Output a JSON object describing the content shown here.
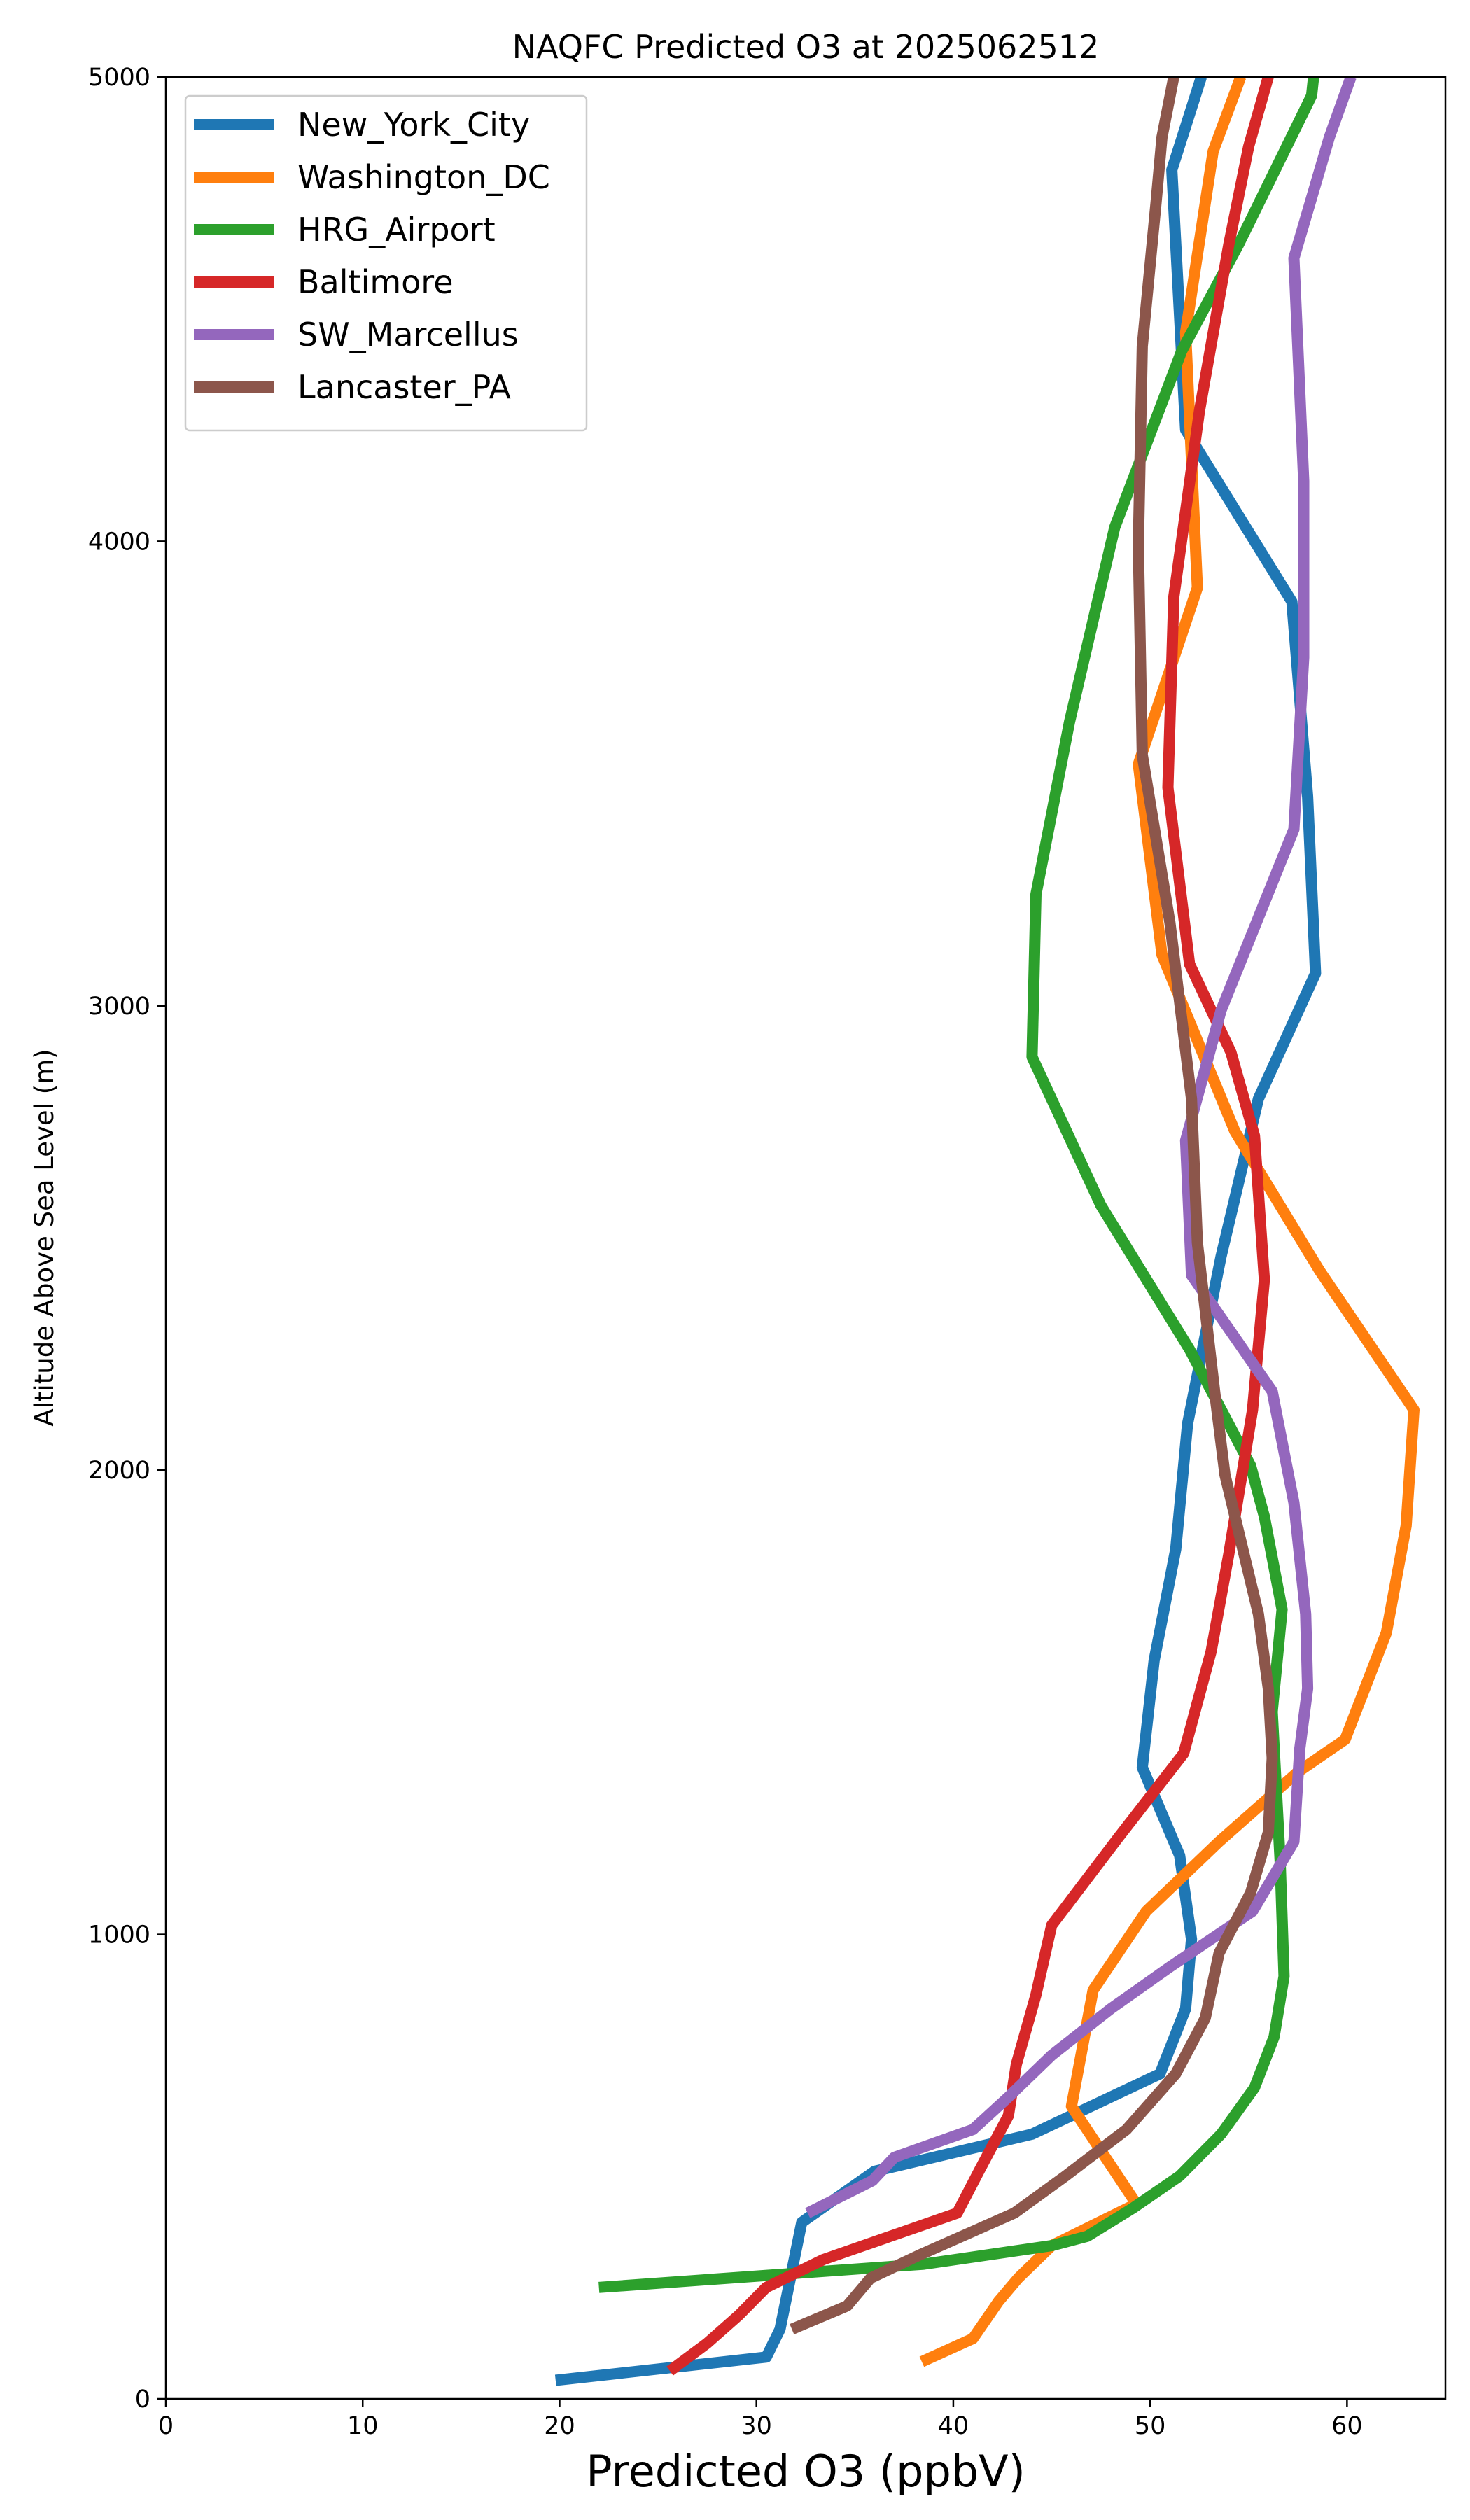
{
  "chart_data": {
    "type": "line",
    "title": "NAQFC Predicted O3 at 2025062512",
    "xlabel": "Predicted O3 (ppbV)",
    "ylabel": "Altitude Above Sea Level (m)",
    "xlim": [
      0,
      65
    ],
    "ylim": [
      0,
      5000
    ],
    "xticks": [
      0,
      10,
      20,
      30,
      40,
      50,
      60
    ],
    "yticks": [
      0,
      1000,
      2000,
      3000,
      4000,
      5000
    ],
    "legend_position": "top-left",
    "grid": false,
    "series": [
      {
        "name": "New_York_City",
        "color": "#1f77b4",
        "points": [
          [
            19.8,
            40
          ],
          [
            30.5,
            90
          ],
          [
            31.2,
            150
          ],
          [
            32.3,
            380
          ],
          [
            36.0,
            490
          ],
          [
            44.0,
            570
          ],
          [
            50.5,
            700
          ],
          [
            51.8,
            840
          ],
          [
            52.1,
            990
          ],
          [
            51.5,
            1170
          ],
          [
            49.6,
            1360
          ],
          [
            50.2,
            1590
          ],
          [
            51.3,
            1830
          ],
          [
            51.9,
            2100
          ],
          [
            53.6,
            2460
          ],
          [
            55.5,
            2800
          ],
          [
            58.4,
            3070
          ],
          [
            58.0,
            3450
          ],
          [
            57.2,
            3870
          ],
          [
            51.8,
            4240
          ],
          [
            51.1,
            4800
          ],
          [
            52.6,
            5000
          ]
        ]
      },
      {
        "name": "Washington_DC",
        "color": "#ff7f0e",
        "points": [
          [
            38.4,
            80
          ],
          [
            41.0,
            130
          ],
          [
            42.3,
            210
          ],
          [
            43.3,
            260
          ],
          [
            45.0,
            330
          ],
          [
            49.3,
            420
          ],
          [
            46.0,
            630
          ],
          [
            47.1,
            880
          ],
          [
            49.8,
            1050
          ],
          [
            53.5,
            1200
          ],
          [
            57.5,
            1350
          ],
          [
            59.9,
            1420
          ],
          [
            62.0,
            1650
          ],
          [
            63.0,
            1880
          ],
          [
            63.4,
            2130
          ],
          [
            58.6,
            2430
          ],
          [
            54.3,
            2730
          ],
          [
            50.6,
            3110
          ],
          [
            49.4,
            3520
          ],
          [
            52.4,
            3900
          ],
          [
            51.8,
            4450
          ],
          [
            53.2,
            4840
          ],
          [
            54.6,
            5000
          ]
        ]
      },
      {
        "name": "HRG_Airport",
        "color": "#2ca02c",
        "points": [
          [
            22.0,
            240
          ],
          [
            38.5,
            290
          ],
          [
            45.0,
            330
          ],
          [
            46.8,
            350
          ],
          [
            49.1,
            410
          ],
          [
            51.5,
            480
          ],
          [
            53.6,
            570
          ],
          [
            55.3,
            670
          ],
          [
            56.3,
            780
          ],
          [
            56.8,
            910
          ],
          [
            56.6,
            1160
          ],
          [
            56.2,
            1480
          ],
          [
            56.7,
            1700
          ],
          [
            55.8,
            1900
          ],
          [
            55.1,
            2010
          ],
          [
            52.0,
            2260
          ],
          [
            47.5,
            2570
          ],
          [
            44.0,
            2890
          ],
          [
            44.2,
            3240
          ],
          [
            45.9,
            3610
          ],
          [
            48.2,
            4030
          ],
          [
            51.6,
            4410
          ],
          [
            54.5,
            4640
          ],
          [
            58.2,
            4960
          ],
          [
            58.3,
            5000
          ]
        ]
      },
      {
        "name": "Baltimore",
        "color": "#d62728",
        "points": [
          [
            25.6,
            60
          ],
          [
            27.5,
            120
          ],
          [
            29.1,
            180
          ],
          [
            30.5,
            240
          ],
          [
            33.4,
            300
          ],
          [
            40.2,
            400
          ],
          [
            41.3,
            490
          ],
          [
            42.8,
            610
          ],
          [
            43.2,
            720
          ],
          [
            44.2,
            870
          ],
          [
            45.0,
            1020
          ],
          [
            48.4,
            1210
          ],
          [
            51.7,
            1390
          ],
          [
            53.1,
            1610
          ],
          [
            54.0,
            1820
          ],
          [
            55.2,
            2130
          ],
          [
            55.8,
            2410
          ],
          [
            55.3,
            2720
          ],
          [
            54.1,
            2900
          ],
          [
            52.0,
            3090
          ],
          [
            50.9,
            3470
          ],
          [
            51.2,
            3880
          ],
          [
            52.5,
            4280
          ],
          [
            54.0,
            4640
          ],
          [
            55.0,
            4850
          ],
          [
            56.0,
            5000
          ]
        ]
      },
      {
        "name": "SW_Marcellus",
        "color": "#9467bd",
        "points": [
          [
            32.6,
            400
          ],
          [
            35.9,
            470
          ],
          [
            37.0,
            520
          ],
          [
            41.0,
            580
          ],
          [
            42.8,
            650
          ],
          [
            45.0,
            740
          ],
          [
            48.0,
            840
          ],
          [
            51.0,
            930
          ],
          [
            55.2,
            1050
          ],
          [
            57.3,
            1200
          ],
          [
            57.6,
            1400
          ],
          [
            58.0,
            1530
          ],
          [
            57.9,
            1690
          ],
          [
            57.3,
            1930
          ],
          [
            56.2,
            2170
          ],
          [
            52.1,
            2420
          ],
          [
            51.8,
            2710
          ],
          [
            53.6,
            2990
          ],
          [
            57.3,
            3380
          ],
          [
            57.8,
            3750
          ],
          [
            57.8,
            4130
          ],
          [
            57.3,
            4610
          ],
          [
            59.1,
            4870
          ],
          [
            60.2,
            5000
          ]
        ]
      },
      {
        "name": "Lancaster_PA",
        "color": "#8c564b",
        "points": [
          [
            31.8,
            150
          ],
          [
            34.6,
            200
          ],
          [
            35.8,
            260
          ],
          [
            38.3,
            310
          ],
          [
            43.1,
            400
          ],
          [
            45.7,
            480
          ],
          [
            48.8,
            580
          ],
          [
            51.3,
            700
          ],
          [
            52.8,
            820
          ],
          [
            53.5,
            960
          ],
          [
            55.1,
            1090
          ],
          [
            56.0,
            1220
          ],
          [
            56.2,
            1380
          ],
          [
            56.0,
            1530
          ],
          [
            55.5,
            1690
          ],
          [
            53.8,
            1990
          ],
          [
            53.3,
            2160
          ],
          [
            52.4,
            2490
          ],
          [
            52.1,
            2800
          ],
          [
            51.0,
            3180
          ],
          [
            49.6,
            3540
          ],
          [
            49.4,
            3990
          ],
          [
            49.6,
            4420
          ],
          [
            50.3,
            4730
          ],
          [
            50.6,
            4870
          ],
          [
            51.2,
            5000
          ]
        ]
      }
    ]
  }
}
